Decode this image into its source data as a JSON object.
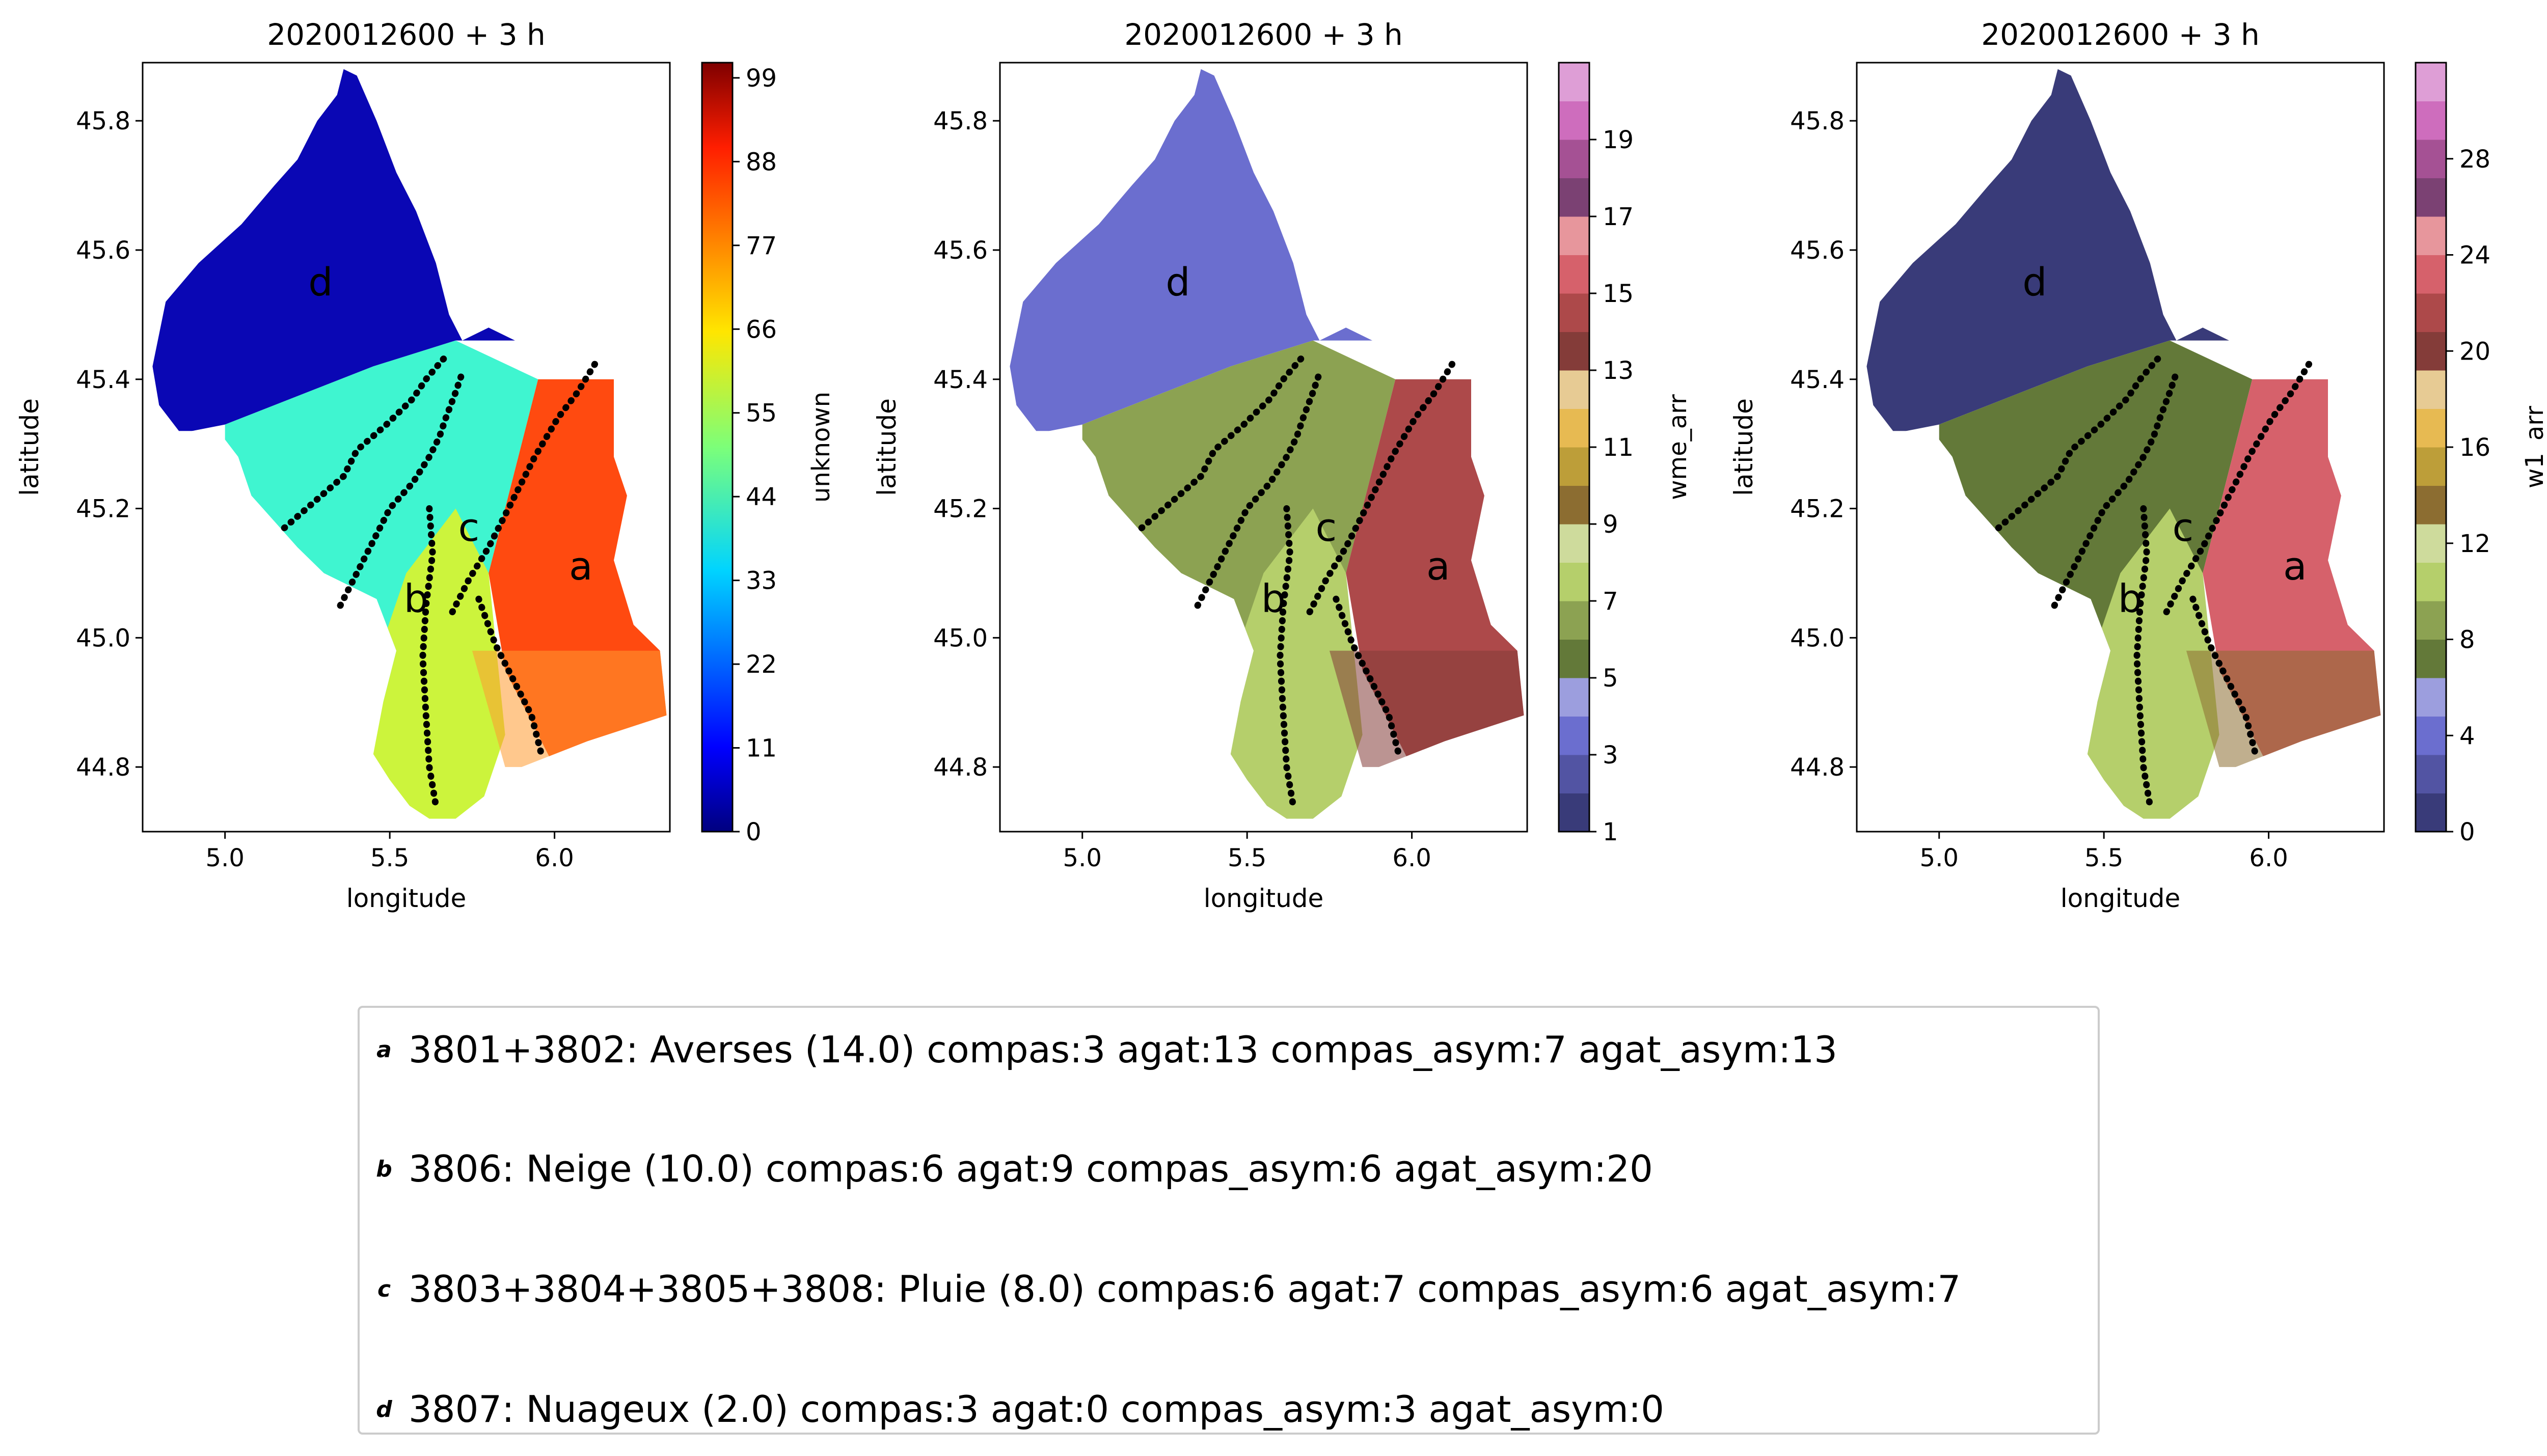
{
  "panels": [
    {
      "title": "2020012600 + 3 h",
      "xlabel": "longitude",
      "ylabel": "latitude",
      "colorbar_label": "unknown",
      "colorbar_ticks": [
        "0",
        "11",
        "22",
        "33",
        "44",
        "55",
        "66",
        "77",
        "88",
        "99"
      ],
      "colormap": "jet",
      "zone_colors": {
        "d": "#0a07b4",
        "c": "#3ff5d0",
        "b": "#ccf43c",
        "a": "#ff4a10",
        "mix": "#ff9a30"
      }
    },
    {
      "title": "2020012600 + 3 h",
      "xlabel": "longitude",
      "ylabel": "latitude",
      "colorbar_label": "wme_arr",
      "colorbar_ticks": [
        "1",
        "3",
        "5",
        "7",
        "9",
        "11",
        "13",
        "15",
        "17",
        "19"
      ],
      "colormap": "tab20b",
      "zone_colors": {
        "d": "#6b6ecf",
        "c": "#8ca252",
        "b": "#b5cf6b",
        "a": "#ad494a",
        "mix": "#843c39"
      }
    },
    {
      "title": "2020012600 + 3 h",
      "xlabel": "longitude",
      "ylabel": "latitude",
      "colorbar_label": "w1_arr",
      "colorbar_ticks": [
        "0",
        "4",
        "8",
        "12",
        "16",
        "20",
        "24",
        "28"
      ],
      "colormap": "tab20b",
      "zone_colors": {
        "d": "#393b79",
        "c": "#637939",
        "b": "#b5cf6b",
        "a": "#d6616b",
        "mix": "#8c6d31"
      }
    }
  ],
  "x_axis_ticks": [
    "5.0",
    "5.5",
    "6.0"
  ],
  "y_axis_ticks": [
    "44.8",
    "45.0",
    "45.2",
    "45.4",
    "45.6",
    "45.8"
  ],
  "map_labels": [
    "a",
    "b",
    "c",
    "d"
  ],
  "chart_data": {
    "type": "heatmap",
    "xlim": [
      4.75,
      6.35
    ],
    "ylim": [
      44.7,
      45.89
    ],
    "zones": [
      {
        "label": "a",
        "lon": 6.08,
        "lat": 45.09
      },
      {
        "label": "b",
        "lon": 5.58,
        "lat": 45.04
      },
      {
        "label": "c",
        "lon": 5.74,
        "lat": 45.15
      },
      {
        "label": "d",
        "lon": 5.29,
        "lat": 45.53
      }
    ],
    "boundaries": [
      {
        "name": "line-1",
        "points": [
          [
            5.18,
            45.17
          ],
          [
            5.27,
            45.21
          ],
          [
            5.36,
            45.25
          ],
          [
            5.4,
            45.29
          ],
          [
            5.49,
            45.33
          ],
          [
            5.57,
            45.37
          ],
          [
            5.61,
            45.4
          ],
          [
            5.66,
            45.43
          ],
          [
            5.68,
            45.44
          ]
        ]
      },
      {
        "name": "line-2",
        "points": [
          [
            5.35,
            45.05
          ],
          [
            5.39,
            45.09
          ],
          [
            5.45,
            45.15
          ],
          [
            5.5,
            45.2
          ],
          [
            5.57,
            45.24
          ],
          [
            5.62,
            45.28
          ],
          [
            5.65,
            45.31
          ],
          [
            5.67,
            45.34
          ],
          [
            5.7,
            45.38
          ],
          [
            5.72,
            45.41
          ]
        ]
      },
      {
        "name": "line-3",
        "points": [
          [
            5.62,
            45.2
          ],
          [
            5.63,
            45.13
          ],
          [
            5.61,
            45.05
          ],
          [
            5.6,
            44.97
          ],
          [
            5.61,
            44.88
          ],
          [
            5.62,
            44.8
          ],
          [
            5.64,
            44.74
          ]
        ]
      },
      {
        "name": "line-4",
        "points": [
          [
            5.69,
            45.04
          ],
          [
            5.74,
            45.09
          ],
          [
            5.8,
            45.14
          ],
          [
            5.87,
            45.21
          ],
          [
            5.94,
            45.28
          ],
          [
            6.01,
            45.34
          ],
          [
            6.07,
            45.38
          ],
          [
            6.13,
            45.43
          ]
        ]
      },
      {
        "name": "line-5",
        "points": [
          [
            5.77,
            45.06
          ],
          [
            5.82,
            44.99
          ],
          [
            5.88,
            44.93
          ],
          [
            5.93,
            44.88
          ],
          [
            5.96,
            44.82
          ]
        ]
      }
    ]
  },
  "legend": {
    "entries": [
      {
        "letter": "a",
        "text": "3801+3802: Averses (14.0) compas:3 agat:13 compas_asym:7 agat_asym:13"
      },
      {
        "letter": "b",
        "text": "3806: Neige (10.0) compas:6 agat:9 compas_asym:6 agat_asym:20"
      },
      {
        "letter": "c",
        "text": "3803+3804+3805+3808: Pluie (8.0) compas:6 agat:7 compas_asym:6 agat_asym:7"
      },
      {
        "letter": "d",
        "text": "3807: Nuageux (2.0) compas:3 agat:0 compas_asym:3 agat_asym:0"
      }
    ]
  }
}
